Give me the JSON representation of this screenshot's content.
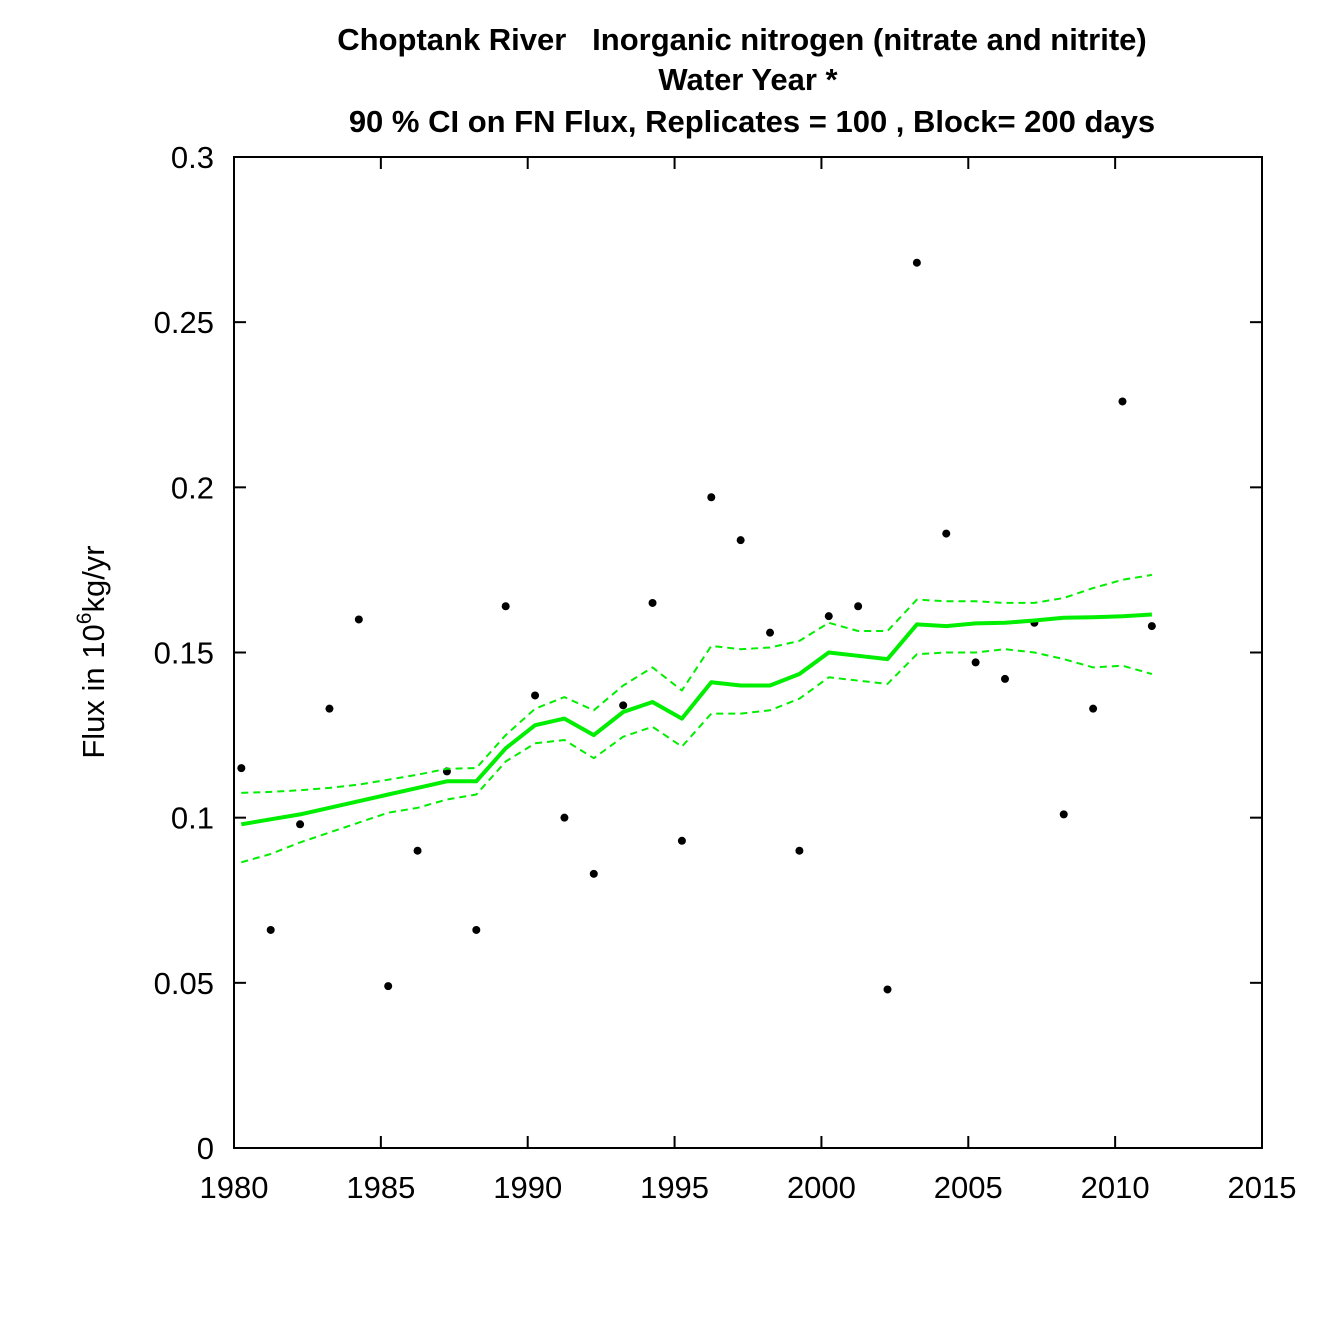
{
  "chart_data": {
    "type": "line",
    "title_lines": [
      "Choptank River   Inorganic nitrogen (nitrate and nitrite)",
      "Water Year *",
      "90 % CI on FN Flux, Replicates = 100 , Block= 200 days"
    ],
    "xlabel": "",
    "ylabel": {
      "prefix": "Flux in 10",
      "superscript": "6",
      "suffix": "kg/yr"
    },
    "xlim": [
      1980,
      2015
    ],
    "ylim": [
      0,
      0.3
    ],
    "x_ticks": [
      1980,
      1985,
      1990,
      1995,
      2000,
      2005,
      2010,
      2015
    ],
    "x_tick_labels": [
      "1980",
      "1985",
      "1990",
      "1995",
      "2000",
      "2005",
      "2010",
      "2015"
    ],
    "y_ticks": [
      0,
      0.05,
      0.1,
      0.15,
      0.2,
      0.25,
      0.3
    ],
    "y_tick_labels": [
      "0",
      "0.05",
      "0.1",
      "0.15",
      "0.2",
      "0.25",
      "0.3"
    ],
    "grid": false,
    "colors": {
      "points": "#000000",
      "fn_flux": "#00ee00",
      "ci": "#00ee00"
    },
    "series": [
      {
        "kind": "points",
        "x": [
          1980.25,
          1981.25,
          1982.25,
          1983.25,
          1984.25,
          1985.25,
          1986.25,
          1987.25,
          1988.25,
          1989.25,
          1990.25,
          1991.25,
          1992.25,
          1993.25,
          1994.25,
          1995.25,
          1996.25,
          1997.25,
          1998.25,
          1999.25,
          2000.25,
          2001.25,
          2002.25,
          2003.25,
          2004.25,
          2005.25,
          2006.25,
          2007.25,
          2008.25,
          2009.25,
          2010.25,
          2011.25
        ],
        "y": [
          0.115,
          0.066,
          0.098,
          0.133,
          0.16,
          0.049,
          0.09,
          0.114,
          0.066,
          0.164,
          0.137,
          0.1,
          0.083,
          0.134,
          0.165,
          0.093,
          0.197,
          0.184,
          0.156,
          0.09,
          0.161,
          0.164,
          0.048,
          0.268,
          0.186,
          0.147,
          0.142,
          0.159,
          0.101,
          0.133,
          0.226,
          0.158
        ]
      },
      {
        "kind": "line",
        "style": "solid",
        "x": [
          1980.25,
          1981.25,
          1982.25,
          1983.25,
          1984.25,
          1985.25,
          1986.25,
          1987.25,
          1988.25,
          1989.25,
          1990.25,
          1991.25,
          1992.25,
          1993.25,
          1994.25,
          1995.25,
          1996.25,
          1997.25,
          1998.25,
          1999.25,
          2000.25,
          2001.25,
          2002.25,
          2003.25,
          2004.25,
          2005.25,
          2006.25,
          2007.25,
          2008.25,
          2009.25,
          2010.25,
          2011.25
        ],
        "y": [
          0.098,
          0.0995,
          0.101,
          0.103,
          0.105,
          0.107,
          0.109,
          0.111,
          0.111,
          0.121,
          0.128,
          0.13,
          0.125,
          0.132,
          0.135,
          0.13,
          0.141,
          0.14,
          0.14,
          0.1435,
          0.15,
          0.149,
          0.148,
          0.1585,
          0.158,
          0.1588,
          0.159,
          0.1597,
          0.1605,
          0.1607,
          0.161,
          0.1615
        ]
      },
      {
        "kind": "line",
        "style": "dashed",
        "x": [
          1980.25,
          1981.25,
          1982.25,
          1983.25,
          1984.25,
          1985.25,
          1986.25,
          1987.25,
          1988.25,
          1989.25,
          1990.25,
          1991.25,
          1992.25,
          1993.25,
          1994.25,
          1995.25,
          1996.25,
          1997.25,
          1998.25,
          1999.25,
          2000.25,
          2001.25,
          2002.25,
          2003.25,
          2004.25,
          2005.25,
          2006.25,
          2007.25,
          2008.25,
          2009.25,
          2010.25,
          2011.25
        ],
        "y": [
          0.1075,
          0.1078,
          0.1083,
          0.109,
          0.11,
          0.1115,
          0.113,
          0.1148,
          0.115,
          0.125,
          0.133,
          0.1365,
          0.1325,
          0.14,
          0.1455,
          0.1385,
          0.152,
          0.151,
          0.1515,
          0.1535,
          0.159,
          0.1565,
          0.1565,
          0.166,
          0.1655,
          0.1655,
          0.165,
          0.165,
          0.1665,
          0.1695,
          0.172,
          0.1735
        ]
      },
      {
        "kind": "line",
        "style": "dashed",
        "x": [
          1980.25,
          1981.25,
          1982.25,
          1983.25,
          1984.25,
          1985.25,
          1986.25,
          1987.25,
          1988.25,
          1989.25,
          1990.25,
          1991.25,
          1992.25,
          1993.25,
          1994.25,
          1995.25,
          1996.25,
          1997.25,
          1998.25,
          1999.25,
          2000.25,
          2001.25,
          2002.25,
          2003.25,
          2004.25,
          2005.25,
          2006.25,
          2007.25,
          2008.25,
          2009.25,
          2010.25,
          2011.25
        ],
        "y": [
          0.0865,
          0.089,
          0.0925,
          0.0955,
          0.0985,
          0.1015,
          0.103,
          0.1055,
          0.107,
          0.117,
          0.1225,
          0.1235,
          0.118,
          0.1245,
          0.1275,
          0.1215,
          0.1315,
          0.1315,
          0.1325,
          0.136,
          0.1425,
          0.1415,
          0.1405,
          0.1495,
          0.15,
          0.15,
          0.151,
          0.15,
          0.148,
          0.1455,
          0.146,
          0.1435
        ]
      }
    ]
  }
}
